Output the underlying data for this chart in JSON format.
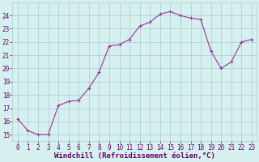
{
  "x": [
    0,
    1,
    2,
    3,
    4,
    5,
    6,
    7,
    8,
    9,
    10,
    11,
    12,
    13,
    14,
    15,
    16,
    17,
    18,
    19,
    20,
    21,
    22,
    23
  ],
  "y": [
    16.2,
    15.3,
    15.0,
    15.0,
    17.2,
    17.5,
    17.6,
    18.5,
    19.7,
    21.7,
    21.8,
    22.2,
    23.2,
    23.5,
    24.1,
    24.3,
    24.0,
    23.8,
    23.7,
    21.3,
    20.0,
    20.5,
    22.0,
    22.2
  ],
  "line_color": "#993399",
  "marker": "+",
  "bg_color": "#d6f0f0",
  "grid_color": "#aacccc",
  "xlabel": "Windchill (Refroidissement éolien,°C)",
  "xlabel_color": "#660066",
  "tick_color": "#660066",
  "ylim": [
    14.5,
    25.0
  ],
  "xlim": [
    -0.5,
    23.5
  ],
  "yticks": [
    15,
    16,
    17,
    18,
    19,
    20,
    21,
    22,
    23,
    24
  ],
  "xticks": [
    0,
    1,
    2,
    3,
    4,
    5,
    6,
    7,
    8,
    9,
    10,
    11,
    12,
    13,
    14,
    15,
    16,
    17,
    18,
    19,
    20,
    21,
    22,
    23
  ],
  "tick_fontsize": 5.5,
  "xlabel_fontsize": 6.5,
  "marker_size": 3,
  "linewidth": 0.8
}
